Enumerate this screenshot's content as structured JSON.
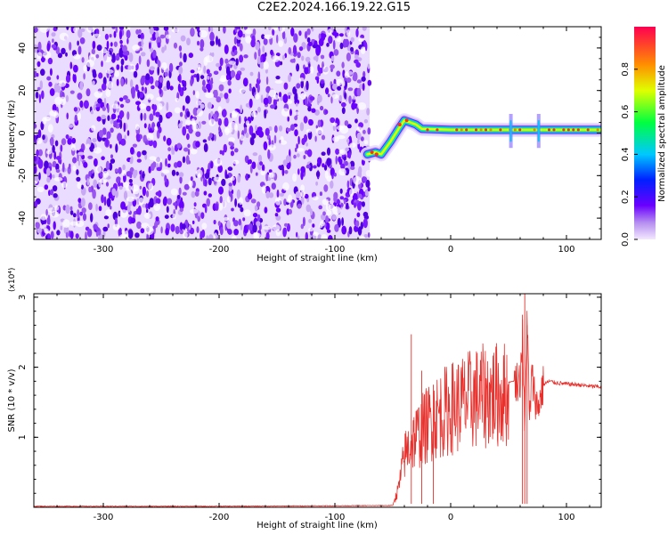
{
  "title": "C2E2.2024.166.19.22.G15",
  "chart_data": [
    {
      "type": "heatmap",
      "xlabel": "Height of straight line (km)",
      "ylabel": "Frequency (Hz)",
      "xlim": [
        -360,
        130
      ],
      "ylim": [
        -50,
        50
      ],
      "xticks": [
        -300,
        -200,
        -100,
        0,
        100
      ],
      "yticks": [
        -40,
        -20,
        0,
        20,
        40
      ],
      "colorbar": {
        "label": "Normalized spectral amplitude",
        "range": [
          0.0,
          1.0
        ],
        "ticks": [
          0.0,
          0.2,
          0.4,
          0.6,
          0.8
        ]
      },
      "noise_region_x": [
        -360,
        -70
      ],
      "signal_track": [
        {
          "x": -72,
          "y": -10
        },
        {
          "x": -65,
          "y": -9
        },
        {
          "x": -60,
          "y": -10
        },
        {
          "x": -52,
          "y": -4
        },
        {
          "x": -45,
          "y": 2
        },
        {
          "x": -40,
          "y": 6
        },
        {
          "x": -35,
          "y": 5
        },
        {
          "x": -30,
          "y": 4
        },
        {
          "x": -25,
          "y": 2
        },
        {
          "x": 0,
          "y": 1.5
        },
        {
          "x": 50,
          "y": 1.5
        },
        {
          "x": 100,
          "y": 1.5
        },
        {
          "x": 130,
          "y": 1.5
        }
      ]
    },
    {
      "type": "line",
      "xlabel": "Height of straight line (km)",
      "ylabel": "SNR (10 * v/v)",
      "multiplier": "(x10⁴)",
      "xlim": [
        -360,
        130
      ],
      "ylim": [
        0,
        3.05
      ],
      "xticks": [
        -300,
        -200,
        -100,
        0,
        100
      ],
      "yticks": [
        1,
        2,
        3
      ],
      "color": "#e8302c",
      "series": [
        {
          "x": [
            -360,
            -200,
            -50,
            -45,
            -40,
            -35,
            -30,
            -25,
            -20,
            -15,
            -10,
            -5,
            0,
            10,
            20,
            30,
            40,
            50,
            55,
            60,
            62,
            64,
            66,
            68,
            70,
            75,
            80,
            85,
            90,
            100,
            110,
            120,
            130
          ],
          "y": [
            0.01,
            0.01,
            0.02,
            0.3,
            0.8,
            1.0,
            1.1,
            1.2,
            1.3,
            1.4,
            1.45,
            1.5,
            1.55,
            1.63,
            1.7,
            1.74,
            1.76,
            1.78,
            1.8,
            1.82,
            2.5,
            1.0,
            2.8,
            1.2,
            1.85,
            1.4,
            1.75,
            1.8,
            1.78,
            1.76,
            1.75,
            1.73,
            1.72
          ]
        }
      ],
      "spikes": [
        {
          "x": -34,
          "y": 2.47
        },
        {
          "x": -25,
          "y": 1.95
        },
        {
          "x": -15,
          "y": 1.75
        },
        {
          "x": 62,
          "y": 2.75
        },
        {
          "x": 64,
          "y": 3.05
        },
        {
          "x": 66,
          "y": 2.6
        }
      ]
    }
  ]
}
